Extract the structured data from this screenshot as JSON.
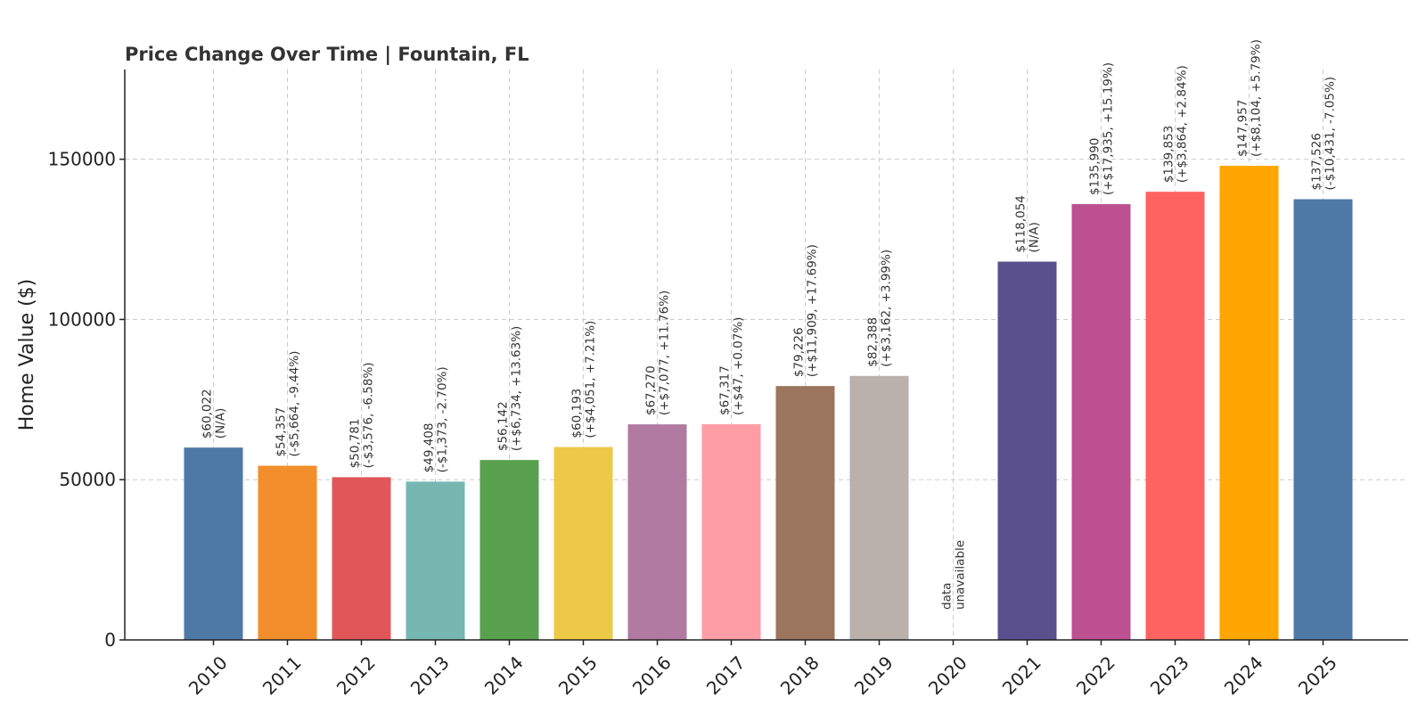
{
  "chart_data": {
    "type": "bar",
    "title": "Price Change Over Time | Fountain, FL",
    "xlabel": "",
    "ylabel": "Home Value ($)",
    "ylim": [
      0,
      178000
    ],
    "yticks": [
      0,
      50000,
      100000,
      150000
    ],
    "grid": true,
    "categories": [
      "2010",
      "2011",
      "2012",
      "2013",
      "2014",
      "2015",
      "2016",
      "2017",
      "2018",
      "2019",
      "2020",
      "2021",
      "2022",
      "2023",
      "2024",
      "2025"
    ],
    "values": [
      60022,
      54357,
      50781,
      49408,
      56142,
      60193,
      67270,
      67317,
      79226,
      82388,
      null,
      118054,
      135990,
      139853,
      147957,
      137526
    ],
    "colors": [
      "#4e79a7",
      "#f28e2b",
      "#e15759",
      "#76b7b2",
      "#59a14f",
      "#edc948",
      "#b07aa1",
      "#ff9da7",
      "#9c755f",
      "#bab0ac",
      "#000000",
      "#59508d",
      "#bc5090",
      "#ff6361",
      "#ffa600",
      "#4e79a7"
    ],
    "labels": [
      [
        "$60,022",
        "(N/A)"
      ],
      [
        "$54,357",
        "(-$5,664, -9.44%)"
      ],
      [
        "$50,781",
        "(-$3,576, -6.58%)"
      ],
      [
        "$49,408",
        "(-$1,373, -2.70%)"
      ],
      [
        "$56,142",
        "(+$6,734, +13.63%)"
      ],
      [
        "$60,193",
        "(+$4,051, +7.21%)"
      ],
      [
        "$67,270",
        "(+$7,077, +11.76%)"
      ],
      [
        "$67,317",
        "(+$47, +0.07%)"
      ],
      [
        "$79,226",
        "(+$11,909, +17.69%)"
      ],
      [
        "$82,388",
        "(+$3,162, +3.99%)"
      ],
      [
        "data",
        "unavailable"
      ],
      [
        "$118,054",
        "(N/A)"
      ],
      [
        "$135,990",
        "(+$17,935, +15.19%)"
      ],
      [
        "$139,853",
        "(+$3,864, +2.84%)"
      ],
      [
        "$147,957",
        "(+$8,104, +5.79%)"
      ],
      [
        "$137,526",
        "(-$10,431, -7.05%)"
      ]
    ]
  }
}
